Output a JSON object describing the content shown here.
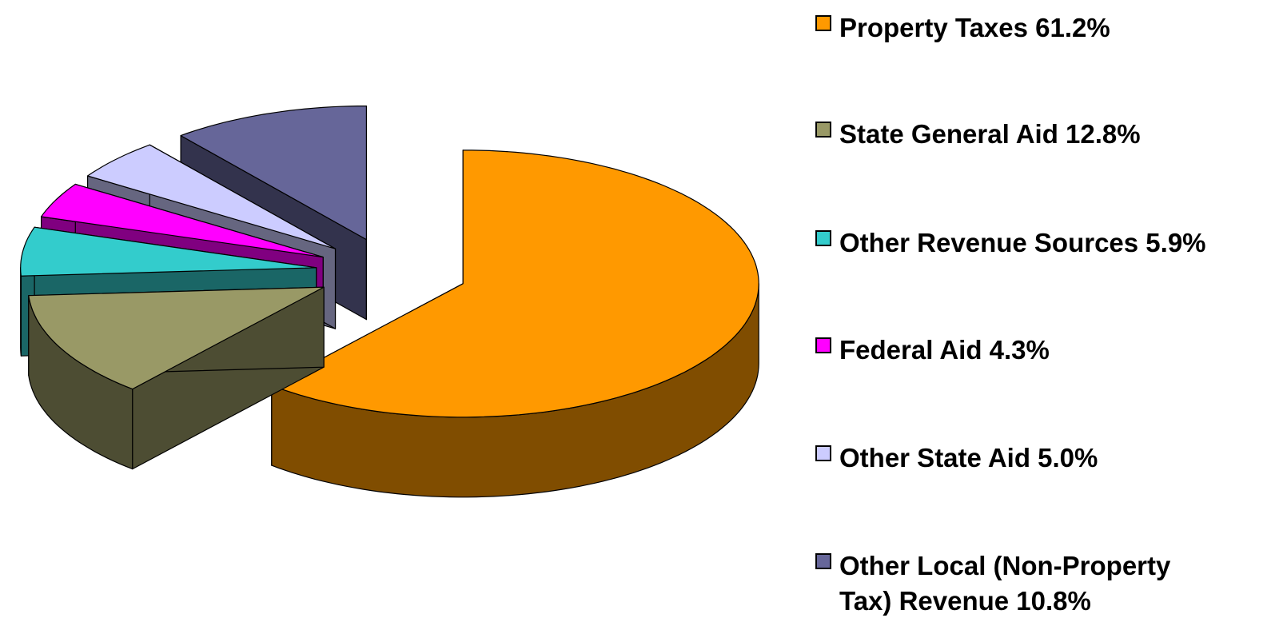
{
  "chart_data": {
    "type": "pie",
    "categories": [
      "Property Taxes 61.2%",
      "State General Aid 12.8%",
      "Other Revenue Sources 5.9%",
      "Federal Aid 4.3%",
      "Other State Aid 5.0%",
      "Other Local (Non-Property Tax) Revenue 10.8%"
    ],
    "values": [
      61.2,
      12.8,
      5.9,
      4.3,
      5.0,
      10.8
    ],
    "colors": [
      "#ff9900",
      "#999966",
      "#33cccc",
      "#ff00ff",
      "#ccccff",
      "#666699"
    ],
    "legend": "right"
  }
}
